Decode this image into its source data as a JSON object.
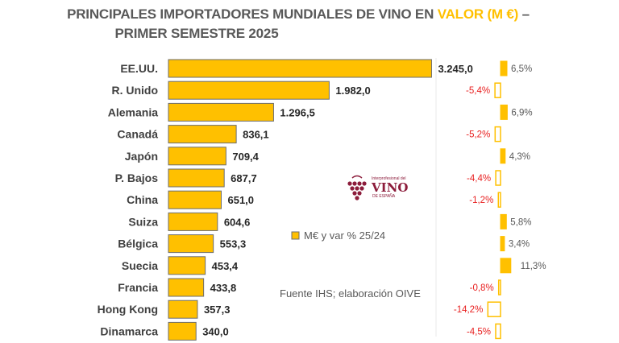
{
  "page": {
    "title_part1": "PRINCIPALES IMPORTADORES MUNDIALES DE VINO EN ",
    "title_highlight": "VALOR (M €)",
    "title_part2": " –",
    "title_line2": "PRIMER SEMESTRE 2025",
    "legend": "M€ y var % 25/24",
    "source": "Fuente IHS; elaboración OIVE",
    "logo_top": "Interprofesional del",
    "logo_name": "VINO",
    "logo_bottom": "DE ESPAÑA"
  },
  "colors": {
    "bar_fill": "#ffc000",
    "bar_stroke": "#6d6d6d",
    "highlight": "#ffc000",
    "title": "#595959",
    "negative": "#e82020",
    "positive": "#595959",
    "logo": "#8c1c3b"
  },
  "chart_data": [
    {
      "type": "bar",
      "orientation": "horizontal",
      "title": "PRINCIPALES IMPORTADORES MUNDIALES DE VINO EN VALOR (M €) – PRIMER SEMESTRE 2025",
      "categories": [
        "EE.UU.",
        "R. Unido",
        "Alemania",
        "Canadá",
        "Japón",
        "P. Bajos",
        "China",
        "Suiza",
        "Bélgica",
        "Suecia",
        "Francia",
        "Hong Kong",
        "Dinamarca"
      ],
      "values": [
        3245.0,
        1982.0,
        1296.5,
        836.1,
        709.4,
        687.7,
        651.0,
        604.6,
        553.3,
        453.4,
        433.8,
        357.3,
        340.0
      ],
      "value_labels": [
        "3.245,0",
        "1.982,0",
        "1.296,5",
        "836,1",
        "709,4",
        "687,7",
        "651,0",
        "604,6",
        "553,3",
        "453,4",
        "433,8",
        "357,3",
        "340,0"
      ],
      "xlim": [
        0,
        3300
      ],
      "grid": false
    },
    {
      "type": "bar",
      "orientation": "horizontal",
      "categories": [
        "EE.UU.",
        "R. Unido",
        "Alemania",
        "Canadá",
        "Japón",
        "P. Bajos",
        "China",
        "Suiza",
        "Bélgica",
        "Suecia",
        "Francia",
        "Hong Kong",
        "Dinamarca"
      ],
      "values": [
        6.5,
        -5.4,
        6.9,
        -5.2,
        4.3,
        -4.4,
        -1.2,
        5.8,
        3.4,
        11.3,
        -0.8,
        -14.2,
        -4.5
      ],
      "value_labels": [
        "6,5%",
        "-5,4%",
        "6,9%",
        "-5,2%",
        "4,3%",
        "-4,4%",
        "-1,2%",
        "5,8%",
        "3,4%",
        "11,3%",
        "-0,8%",
        "-14,2%",
        "-4,5%"
      ],
      "xlim": [
        -15,
        12
      ],
      "grid": false
    }
  ]
}
